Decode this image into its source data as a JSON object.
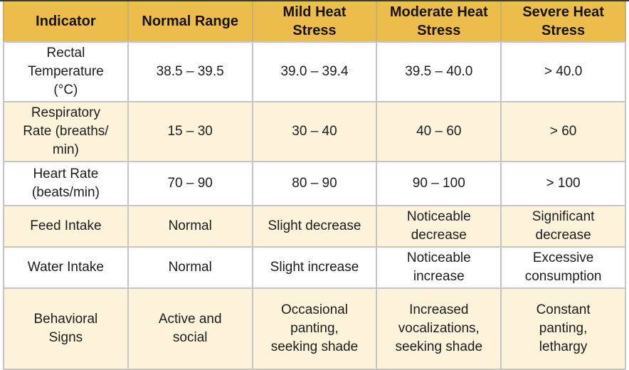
{
  "table": {
    "title_semantic": "Livestock heat stress indicator reference table",
    "headers": [
      "Indicator",
      "Normal Range",
      "Mild Heat\nStress",
      "Moderate Heat\nStress",
      "Severe Heat\nStress"
    ],
    "rows": [
      {
        "cells": [
          "Rectal\nTemperature\n(°C)",
          "38.5 – 39.5",
          "39.0 – 39.4",
          "39.5 – 40.0",
          "> 40.0"
        ]
      },
      {
        "cells": [
          "Respiratory\nRate (breaths/\nmin)",
          "15 – 30",
          "30 – 40",
          "40 – 60",
          "> 60"
        ]
      },
      {
        "cells": [
          "Heart Rate\n(beats/min)",
          "70 – 90",
          "80 – 90",
          "90 – 100",
          "> 100"
        ]
      },
      {
        "cells": [
          "Feed Intake",
          "Normal",
          "Slight decrease",
          "Noticeable\ndecrease",
          "Significant\ndecrease"
        ]
      },
      {
        "cells": [
          "Water Intake",
          "Normal",
          "Slight increase",
          "Noticeable\nincrease",
          "Excessive\nconsumption"
        ]
      },
      {
        "cells": [
          "Behavioral\nSigns",
          "Active and\nsocial",
          "Occasional\npanting,\nseeking shade",
          "Increased\nvocalizations,\nseeking shade",
          "Constant\npanting,\nlethargy"
        ]
      }
    ]
  },
  "colors": {
    "header_bg": "#ecbd4b",
    "row_white_bg": "#ffffff",
    "row_cream_bg": "#fcf3da",
    "grid_border": "#c5c5c5",
    "top_edge_line": "#3a3a3a",
    "text": "#1c1c1c"
  }
}
